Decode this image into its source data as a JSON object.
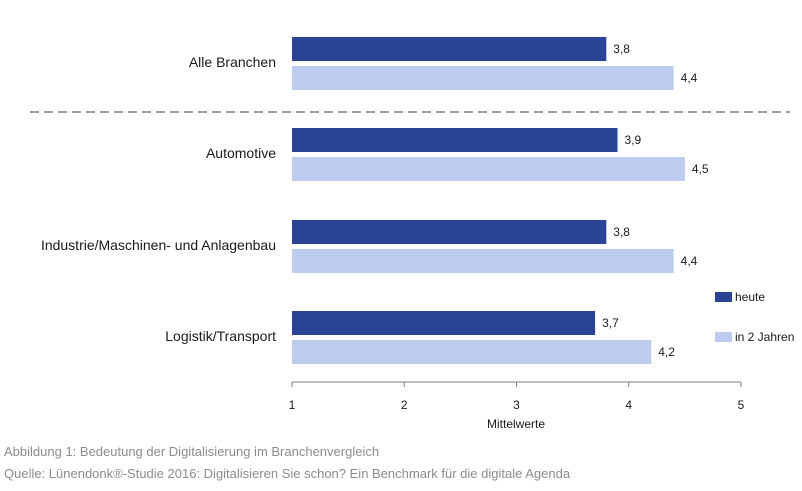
{
  "chart_data": {
    "type": "bar",
    "orientation": "horizontal",
    "categories": [
      "Alle Branchen",
      "Automotive",
      "Industrie/Maschinen- und Anlagenbau",
      "Logistik/Transport"
    ],
    "series": [
      {
        "name": "heute",
        "color": "#2a4394",
        "values": [
          3.8,
          3.9,
          3.8,
          3.7
        ],
        "labels": [
          "3,8",
          "3,9",
          "3,8",
          "3,7"
        ]
      },
      {
        "name": "in 2 Jahren",
        "color": "#bccbee",
        "values": [
          4.4,
          4.5,
          4.4,
          4.2
        ],
        "labels": [
          "4,4",
          "4,5",
          "4,4",
          "4,2"
        ]
      }
    ],
    "xlim": [
      1,
      5
    ],
    "xticks": [
      "1",
      "2",
      "3",
      "4",
      "5"
    ],
    "xlabel": "Mittelwerte",
    "legend": "right",
    "separator_after_first_category": true
  },
  "caption": {
    "line1": "Abbildung 1: Bedeutung der Digitalisierung im Branchenvergleich",
    "line2": "Quelle: Lünendonk®-Studie 2016: Digitalisieren Sie schon? Ein Benchmark für die digitale Agenda"
  }
}
